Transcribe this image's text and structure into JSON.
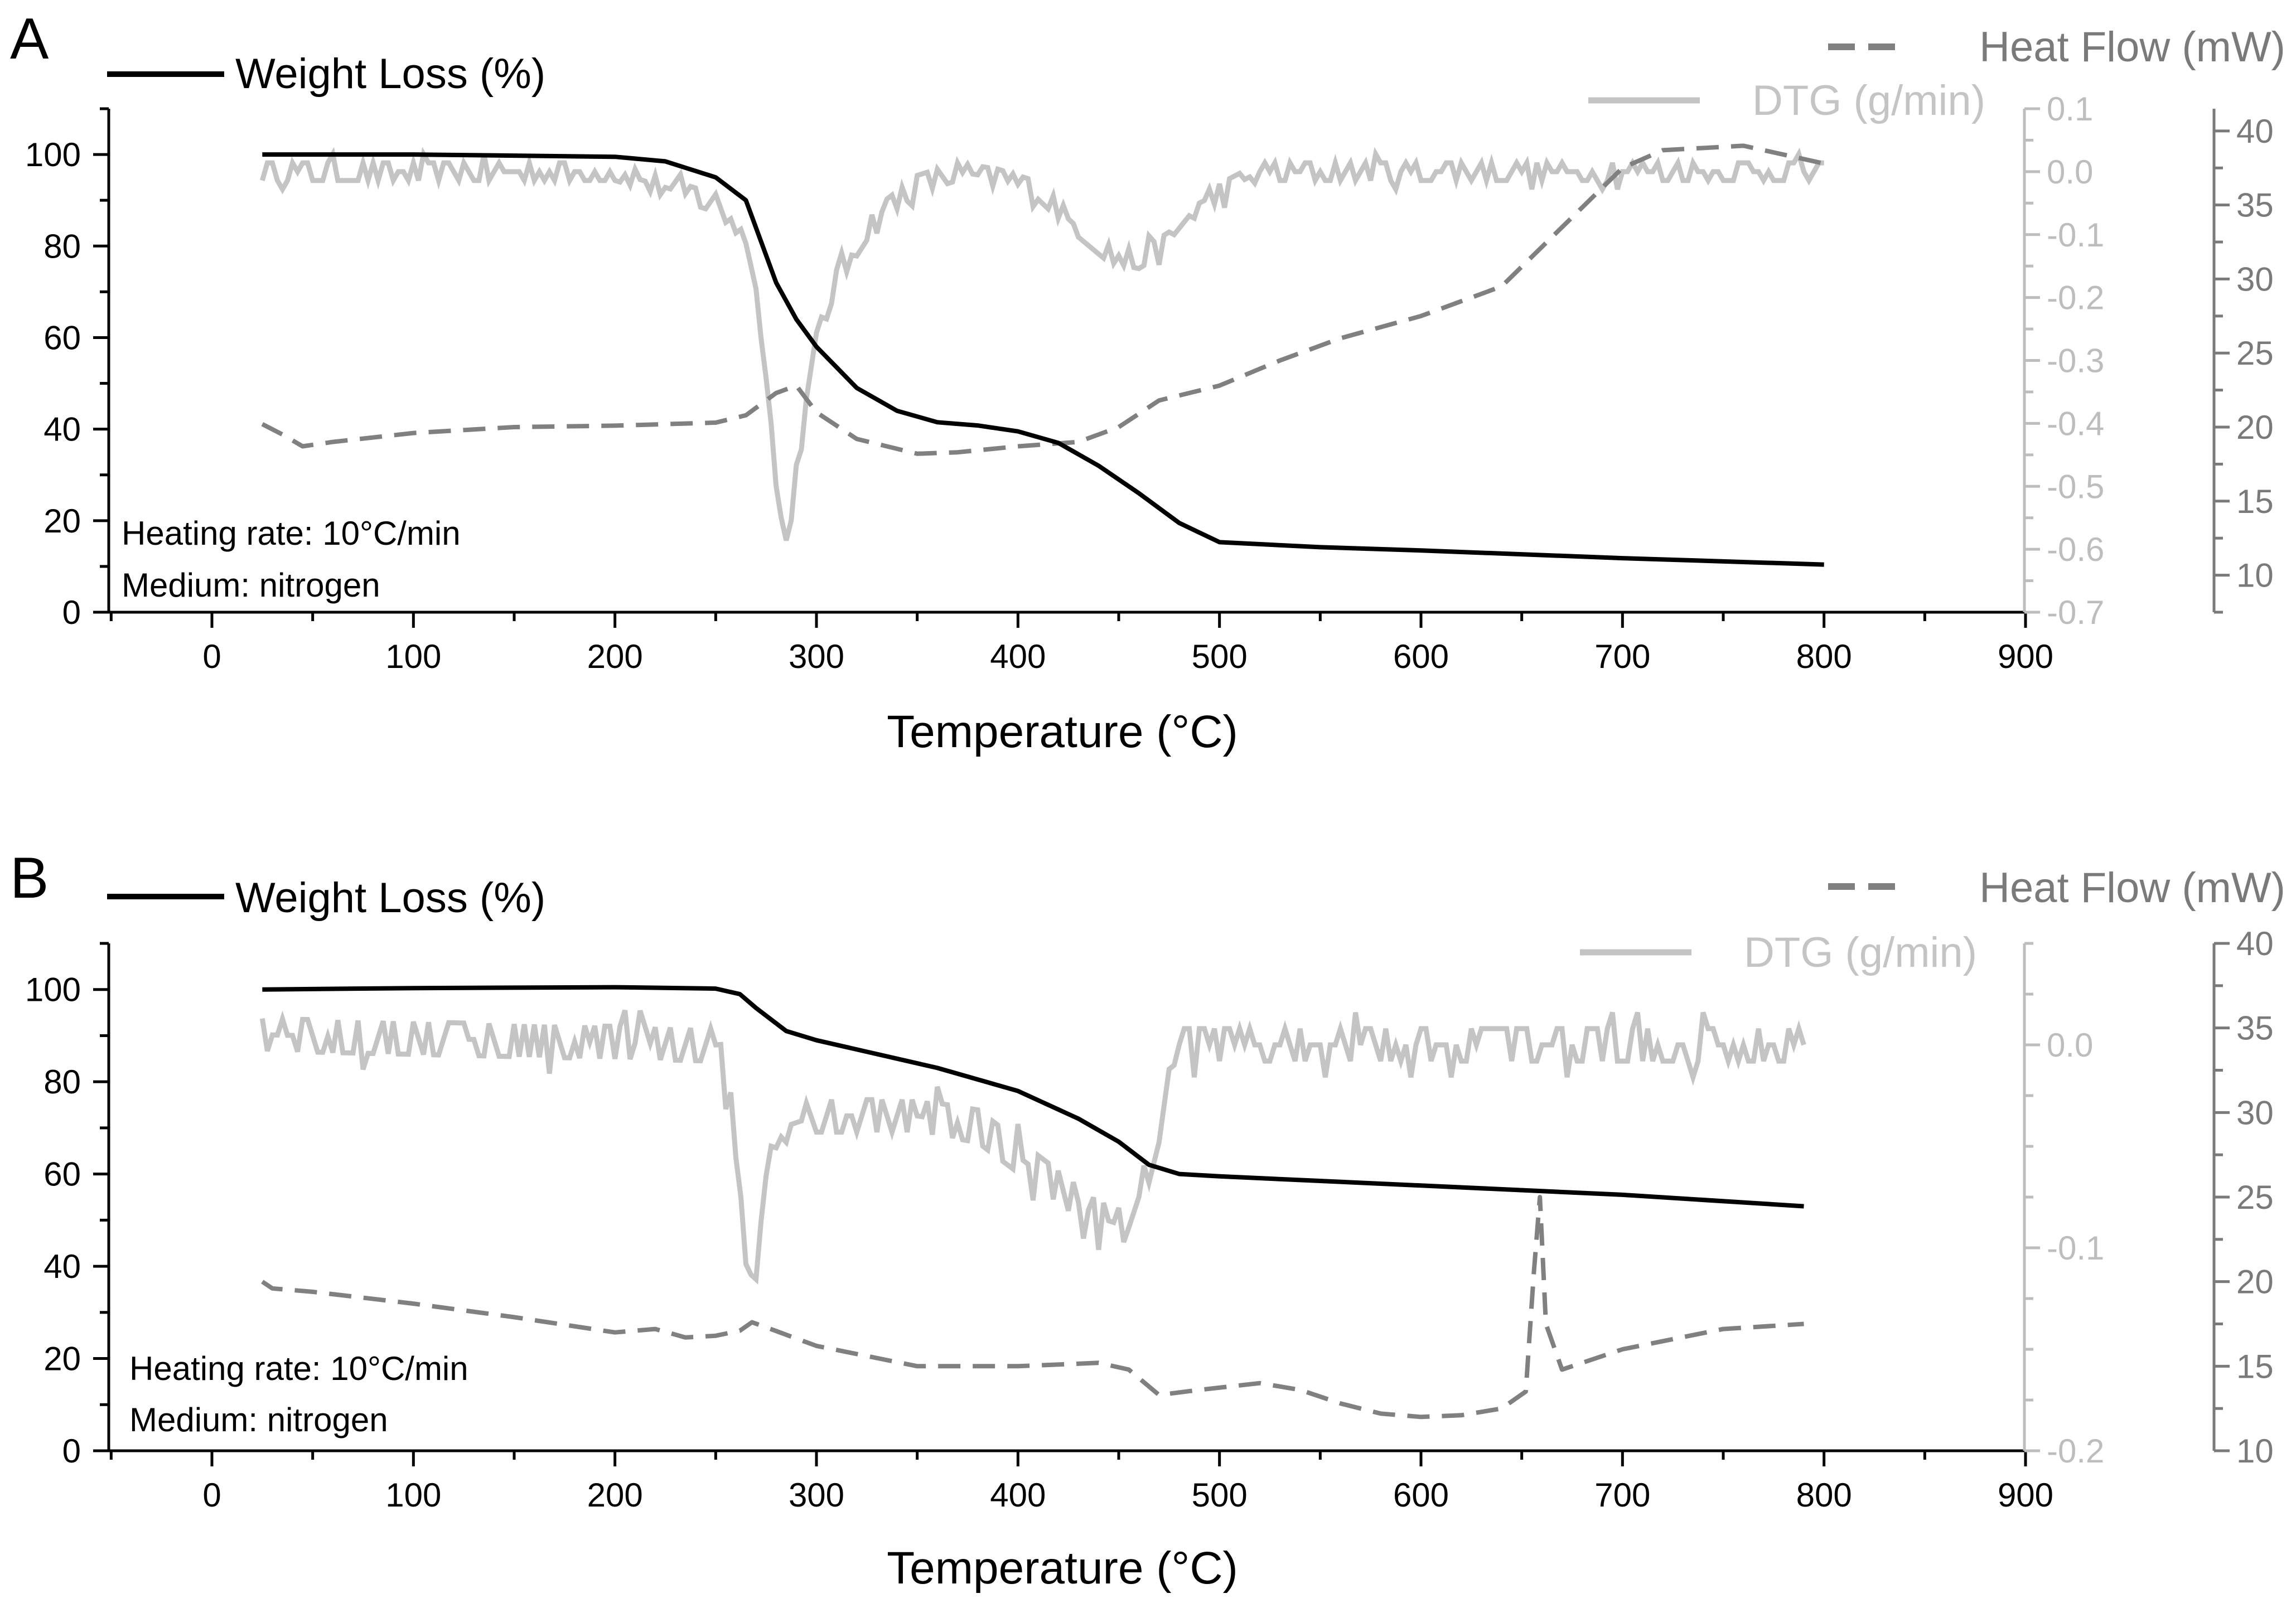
{
  "colors": {
    "weight": "#000000",
    "heat": "#808080",
    "dtg": "#c4c4c4",
    "axis_secondary": "#bdbdbd",
    "axis_heat": "#7a7a7a"
  },
  "chart_data": [
    {
      "type": "line",
      "panel_label": "A",
      "xlabel": "Temperature (°C)",
      "xlim": [
        -50,
        900
      ],
      "x_ticks": [
        0,
        100,
        200,
        300,
        400,
        500,
        600,
        700,
        800,
        900
      ],
      "annotation": [
        "Heating rate: 10°C/min",
        "Medium: nitrogen"
      ],
      "axes": {
        "weight": {
          "label": "Weight Loss (%)",
          "lim": [
            0,
            110
          ],
          "ticks": [
            0,
            20,
            40,
            60,
            80,
            100
          ]
        },
        "dtg": {
          "label": "DTG (g/min)",
          "lim": [
            -0.7,
            0.1
          ],
          "ticks": [
            0.1,
            0.0,
            -0.1,
            -0.2,
            -0.3,
            -0.4,
            -0.5,
            -0.6,
            -0.7
          ],
          "tick_labels": [
            "0.1",
            "0.0",
            "-0.1",
            "-0.2",
            "-0.3",
            "-0.4",
            "-0.5",
            "-0.6",
            "-0.7"
          ]
        },
        "heat": {
          "label": "Heat Flow (mW)",
          "lim": [
            7.5,
            41.5
          ],
          "ticks": [
            10,
            15,
            20,
            25,
            30,
            35,
            40
          ]
        }
      },
      "series": [
        {
          "name": "Weight Loss (%)",
          "axis": "weight",
          "style": "solid",
          "x": [
            25,
            100,
            200,
            225,
            250,
            265,
            280,
            290,
            300,
            320,
            340,
            360,
            380,
            400,
            420,
            440,
            460,
            480,
            500,
            550,
            600,
            700,
            800
          ],
          "y": [
            100,
            100,
            99.5,
            98.5,
            95,
            90,
            72,
            64,
            58,
            49,
            44,
            41.5,
            40.8,
            39.5,
            37,
            32,
            26,
            19.5,
            15.3,
            14.2,
            13.5,
            11.8,
            10.4
          ]
        },
        {
          "name": "DTG (g/min)",
          "axis": "dtg",
          "style": "noisy",
          "noise_amp": 0.014,
          "x": [
            25,
            200,
            230,
            250,
            265,
            275,
            280,
            285,
            290,
            300,
            310,
            330,
            350,
            370,
            390,
            410,
            430,
            445,
            460,
            475,
            490,
            520,
            800
          ],
          "y": [
            0,
            0,
            -0.03,
            -0.05,
            -0.1,
            -0.3,
            -0.5,
            -0.6,
            -0.48,
            -0.27,
            -0.17,
            -0.07,
            -0.02,
            0,
            -0.01,
            -0.03,
            -0.09,
            -0.13,
            -0.14,
            -0.11,
            -0.05,
            0,
            0
          ]
        },
        {
          "name": "Heat Flow (mW)",
          "axis": "heat",
          "style": "dashed",
          "x": [
            25,
            35,
            45,
            60,
            100,
            150,
            200,
            250,
            265,
            280,
            290,
            300,
            320,
            350,
            370,
            400,
            430,
            450,
            470,
            500,
            530,
            560,
            600,
            640,
            670,
            700,
            720,
            760,
            800
          ],
          "y": [
            20.2,
            19.5,
            18.7,
            19.0,
            19.6,
            20.0,
            20.1,
            20.3,
            20.8,
            22.3,
            22.8,
            21.0,
            19.2,
            18.2,
            18.3,
            18.7,
            19.0,
            20.0,
            21.8,
            22.8,
            24.5,
            26.0,
            27.5,
            29.5,
            33.5,
            37.5,
            38.7,
            39.0,
            37.8
          ]
        }
      ]
    },
    {
      "type": "line",
      "panel_label": "B",
      "xlabel": "Temperature (°C)",
      "xlim": [
        -50,
        900
      ],
      "x_ticks": [
        0,
        100,
        200,
        300,
        400,
        500,
        600,
        700,
        800,
        900
      ],
      "annotation": [
        "Heating rate: 10°C/min",
        "Medium: nitrogen"
      ],
      "axes": {
        "weight": {
          "label": "Weight Loss (%)",
          "lim": [
            0,
            110
          ],
          "ticks": [
            0,
            20,
            40,
            60,
            80,
            100
          ]
        },
        "dtg": {
          "label": "DTG (g/min)",
          "lim": [
            -0.2,
            0.05
          ],
          "ticks": [
            0.0,
            -0.1,
            -0.2
          ],
          "tick_labels": [
            "0.0",
            "-0.1",
            "-0.2"
          ]
        },
        "heat": {
          "label": "Heat Flow (mW)",
          "lim": [
            10,
            40
          ],
          "ticks": [
            10,
            15,
            20,
            25,
            30,
            35,
            40
          ]
        }
      },
      "series": [
        {
          "name": "Weight Loss (%)",
          "axis": "weight",
          "style": "solid",
          "x": [
            25,
            100,
            200,
            250,
            262,
            270,
            285,
            300,
            330,
            360,
            400,
            430,
            450,
            465,
            480,
            500,
            600,
            700,
            790
          ],
          "y": [
            100,
            100.3,
            100.5,
            100.2,
            99,
            96,
            91,
            89,
            86,
            83,
            78,
            72,
            67,
            62,
            60,
            59.5,
            57.5,
            55.5,
            53
          ]
        },
        {
          "name": "DTG (g/min)",
          "axis": "dtg",
          "style": "noisy",
          "noise_amp": 0.008,
          "x": [
            25,
            250,
            258,
            262,
            266,
            268,
            272,
            278,
            285,
            300,
            350,
            380,
            400,
            420,
            440,
            455,
            465,
            475,
            480,
            790
          ],
          "y": [
            0.005,
            0,
            -0.025,
            -0.07,
            -0.11,
            -0.125,
            -0.09,
            -0.055,
            -0.04,
            -0.035,
            -0.035,
            -0.04,
            -0.055,
            -0.07,
            -0.085,
            -0.09,
            -0.06,
            -0.02,
            0,
            0
          ]
        },
        {
          "name": "Heat Flow (mW)",
          "axis": "heat",
          "style": "dashed",
          "x": [
            25,
            30,
            50,
            100,
            150,
            200,
            220,
            235,
            250,
            262,
            268,
            275,
            300,
            350,
            400,
            440,
            455,
            470,
            490,
            520,
            540,
            560,
            580,
            600,
            620,
            640,
            652,
            656,
            659,
            662,
            670,
            700,
            750,
            790
          ],
          "y": [
            20,
            19.6,
            19.4,
            18.7,
            17.9,
            17.0,
            17.2,
            16.7,
            16.8,
            17.1,
            17.6,
            17.3,
            16.2,
            15.0,
            15.0,
            15.2,
            14.8,
            13.3,
            13.6,
            14.0,
            13.6,
            12.8,
            12.2,
            12.0,
            12.1,
            12.5,
            13.5,
            20.5,
            25.0,
            17.5,
            14.8,
            16.0,
            17.2,
            17.5
          ]
        }
      ]
    }
  ]
}
